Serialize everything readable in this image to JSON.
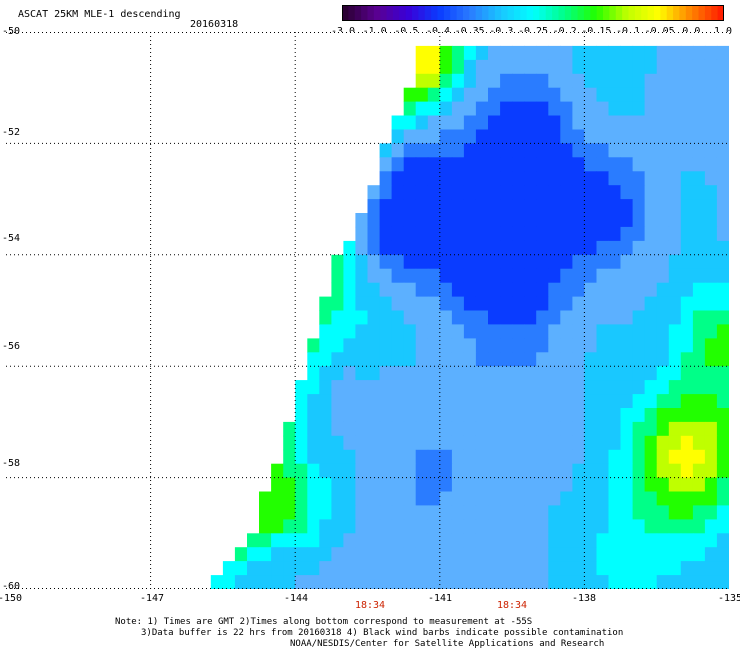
{
  "header": {
    "product_title": "ASCAT 25KM MLE-1 descending",
    "date": "20160318"
  },
  "colorbar": {
    "labels": [
      "-3.0",
      "-1.0",
      "-0.5",
      "-0.4",
      "-0.35",
      "-0.3",
      "-0.25",
      "-0.2",
      "-0.15",
      "-0.1",
      "-0.05",
      "0.0",
      "1.0"
    ],
    "colors": [
      "#2b0033",
      "#5a0090",
      "#3a00d8",
      "#0a3cff",
      "#2a7cff",
      "#19c8ff",
      "#00ffff",
      "#00ff88",
      "#22ff00",
      "#bfff00",
      "#ffff00",
      "#ff8800",
      "#ff2000"
    ]
  },
  "axes": {
    "lat_labels": [
      "-50",
      "-52",
      "-54",
      "-56",
      "-58",
      "-60"
    ],
    "lon_labels": [
      "-150",
      "-147",
      "-144",
      "-141",
      "-138",
      "-135"
    ]
  },
  "time_labels": [
    "18:34",
    "18:34"
  ],
  "notes": {
    "line1": "Note: 1) Times are GMT 2)Times along bottom correspond to measurement at -55S",
    "line2": "3)Data buffer is 22 hrs from 20160318 4) Black wind barbs indicate possible contamination",
    "line3": "NOAA/NESDIS/Center for Satellite Applications and Research"
  },
  "map_field": {
    "lon_range": [
      -150,
      -135
    ],
    "lat_range": [
      -50,
      -60
    ],
    "swath_edge": [
      [
        -50.3,
        -141.5
      ],
      [
        -51.0,
        -141.7
      ],
      [
        -52.0,
        -142.2
      ],
      [
        -53.0,
        -142.6
      ],
      [
        -54.0,
        -143.2
      ],
      [
        -55.0,
        -143.6
      ],
      [
        -56.0,
        -143.9
      ],
      [
        -57.0,
        -144.2
      ],
      [
        -58.0,
        -144.6
      ],
      [
        -59.0,
        -145.0
      ],
      [
        -60.0,
        -145.9
      ]
    ],
    "palette": [
      "#0a3cff",
      "#2a7cff",
      "#5cb0ff",
      "#19c8ff",
      "#00ffff",
      "#00ff88",
      "#22ff00",
      "#bfff00",
      "#ffff00",
      "#ff8800"
    ],
    "blobs": [
      {
        "lat": -52.2,
        "lon": -139.3,
        "r": 1.1,
        "v": -0.55
      },
      {
        "lat": -54.0,
        "lon": -139.6,
        "r": 1.3,
        "v": -0.55
      },
      {
        "lat": -53.2,
        "lon": -141.8,
        "r": 1.2,
        "v": -0.5
      },
      {
        "lat": -53.2,
        "lon": -137.5,
        "r": 0.9,
        "v": -0.3
      },
      {
        "lat": -57.5,
        "lon": -135.8,
        "r": 1.2,
        "v": 0.7
      },
      {
        "lat": -55.5,
        "lon": -135.2,
        "r": 1.0,
        "v": 0.5
      },
      {
        "lat": -50.5,
        "lon": -141.2,
        "r": 0.8,
        "v": 0.6
      },
      {
        "lat": -58.5,
        "lon": -144.2,
        "r": 0.9,
        "v": 0.45
      },
      {
        "lat": -59.0,
        "lon": -136.8,
        "r": 1.6,
        "v": 0.25
      },
      {
        "lat": -55.0,
        "lon": -142.8,
        "r": 1.0,
        "v": 0.25
      },
      {
        "lat": -50.3,
        "lon": -137.0,
        "r": 1.5,
        "v": 0.05
      },
      {
        "lat": -57.8,
        "lon": -140.5,
        "r": 2.0,
        "v": -0.1
      }
    ]
  }
}
